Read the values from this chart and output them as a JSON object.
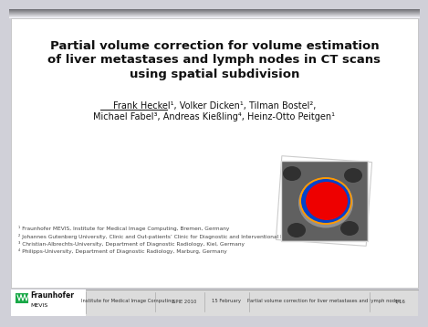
{
  "bg_color": "#d0d0d8",
  "slide_bg": "#ffffff",
  "title_line1": "Partial volume correction for volume estimation",
  "title_line2": "of liver metastases and lymph nodes in CT scans",
  "title_line3": "using spatial subdivision",
  "authors_line1": "Frank Heckel¹, Volker Dicken¹, Tilman Bostel²,",
  "authors_line2": "Michael Fabel³, Andreas Kießling⁴, Heinz-Otto Peitgen¹",
  "footnote1": "¹ Fraunhofer MEVIS, Institute for Medical Image Computing, Bremen, Germany",
  "footnote2": "² Johannes Gutenberg University, Clinic and Out-patients’ Clinic for Diagnostic and Interventional Radiology, Mainz, Germany",
  "footnote3": "³ Christian-Albrechts-University, Department of Diagnostic Radiology, Kiel, Germany",
  "footnote4": "⁴ Philipps-University, Department of Diagnostic Radiology, Marburg, Germany",
  "footer_items": [
    "Institute for Medical Image Computing",
    "SPIE 2010",
    "15 February",
    "Partial volume correction for liver metastases and lymph nodes",
    "1/16"
  ],
  "fraunhofer_green": "#18A847",
  "footer_bg": "#dcdcdc",
  "footer_line_color": "#aaaaaa",
  "slide_top_bar": "#888899"
}
